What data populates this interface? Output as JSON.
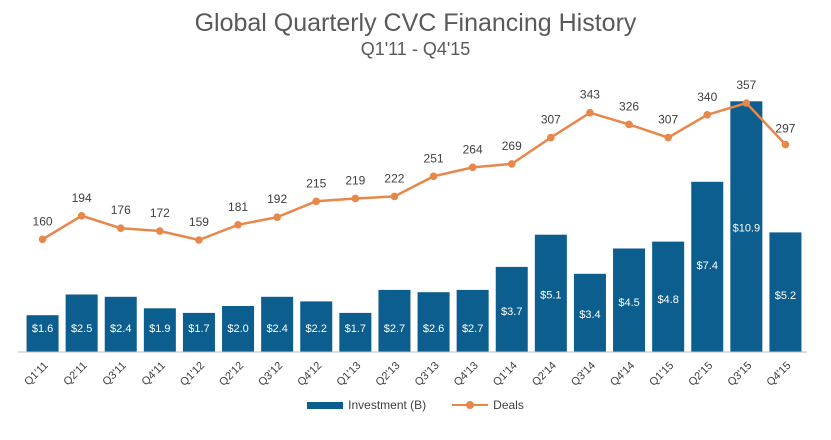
{
  "chart_data": {
    "type": "bar",
    "title": "Global Quarterly CVC Financing History",
    "subtitle": "Q1'11 - Q4'15",
    "categories": [
      "Q1'11",
      "Q2'11",
      "Q3'11",
      "Q4'11",
      "Q1'12",
      "Q2'12",
      "Q3'12",
      "Q4'12",
      "Q1'13",
      "Q2'13",
      "Q3'13",
      "Q4'13",
      "Q1'14",
      "Q2'14",
      "Q3'14",
      "Q4'14",
      "Q1'15",
      "Q2'15",
      "Q3'15",
      "Q4'15"
    ],
    "series": [
      {
        "name": "Investment (B)",
        "kind": "bar",
        "color": "#0B5E8E",
        "values": [
          1.6,
          2.5,
          2.4,
          1.9,
          1.7,
          2.0,
          2.4,
          2.2,
          1.7,
          2.7,
          2.6,
          2.7,
          3.7,
          5.1,
          3.4,
          4.5,
          4.8,
          7.4,
          10.9,
          5.2
        ],
        "labels": [
          "$1.6",
          "$2.5",
          "$2.4",
          "$1.9",
          "$1.7",
          "$2.0",
          "$2.4",
          "$2.2",
          "$1.7",
          "$2.7",
          "$2.6",
          "$2.7",
          "$3.7",
          "$5.1",
          "$3.4",
          "$4.5",
          "$4.8",
          "$7.4",
          "$10.9",
          "$5.2"
        ]
      },
      {
        "name": "Deals",
        "kind": "line",
        "color": "#E8874A",
        "values": [
          160,
          194,
          176,
          172,
          159,
          181,
          192,
          215,
          219,
          222,
          251,
          264,
          269,
          307,
          343,
          326,
          307,
          340,
          357,
          297
        ]
      }
    ],
    "ylim_investment": [
      0,
      11.0
    ],
    "ylim_deals": [
      -180,
      380
    ],
    "legend_position": "bottom-center",
    "grid": false
  }
}
